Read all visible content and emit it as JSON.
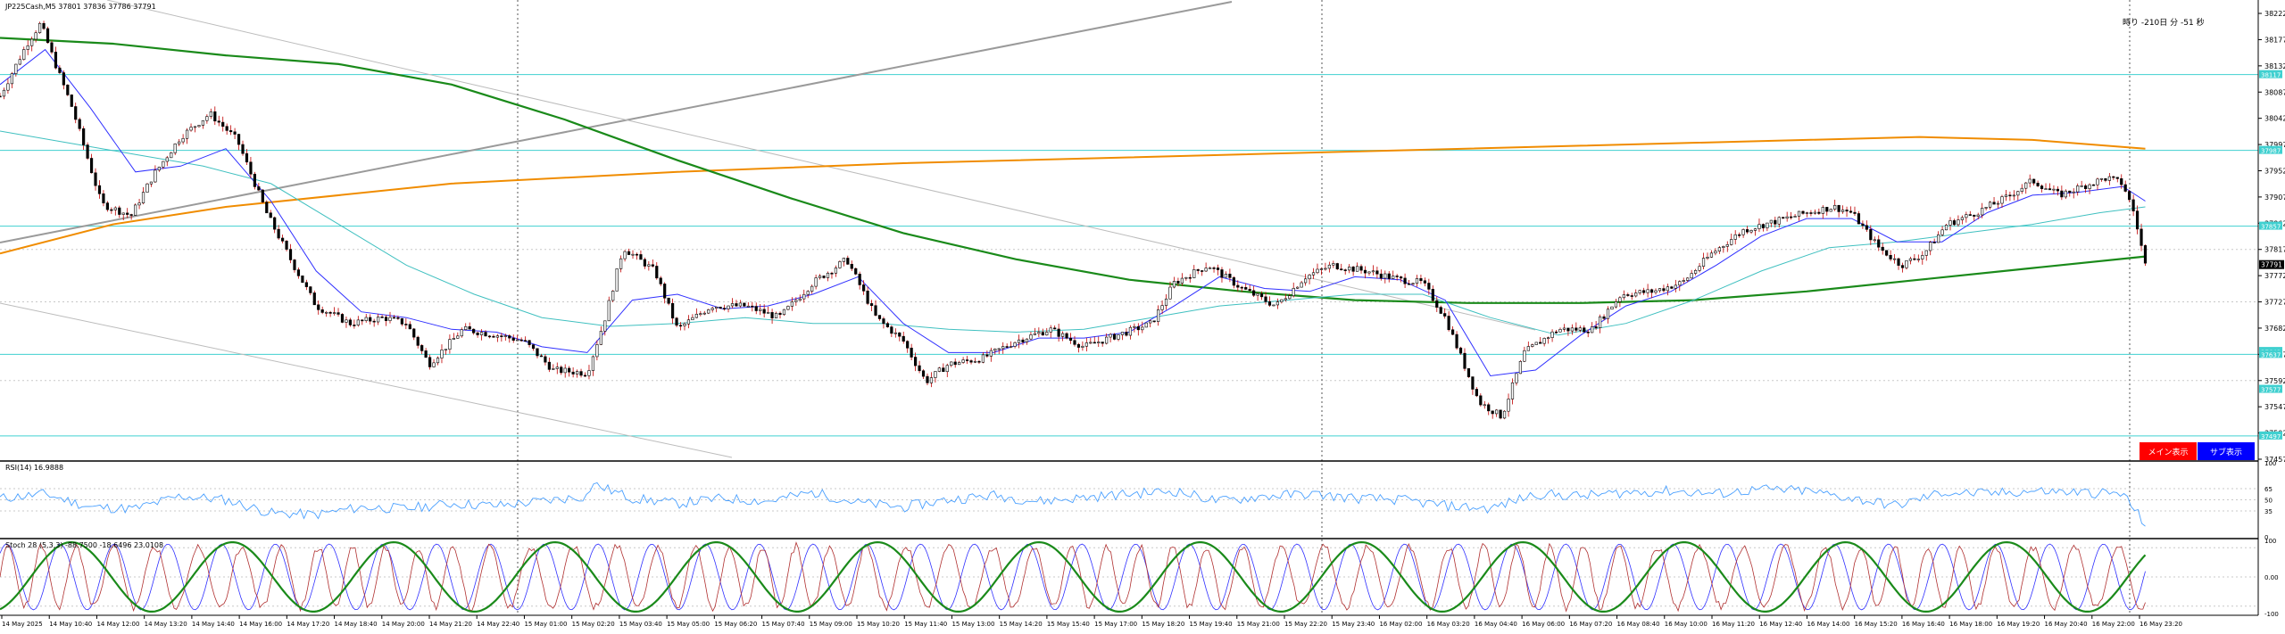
{
  "symbol_label": "JP225Cash,M5  37801 37836 37786 37791",
  "countdown": "時り -210日 分 -51 秒",
  "buttons": {
    "main": "メイン表示",
    "sub": "サブ表示",
    "main_color": "#ff0000",
    "sub_color": "#0000ff"
  },
  "colors": {
    "candle_bull": "#000000",
    "candle_bear": "#000000",
    "wick_color": "#c00000",
    "ma_fast": "#3030ff",
    "ma_mid": "#40c0c0",
    "ma_slow": "#1a8a1a",
    "ma_long": "#f08c00",
    "hline": "#40d0d0",
    "trend": "#909090",
    "rsi": "#4aa0ff",
    "stoch_k": "#b03030",
    "stoch_d": "#3030ff",
    "stoch_slow": "#1a8a1a",
    "grid": "#c8c8c8"
  },
  "rsi_label": "RSI(14) 16.9888",
  "stoch_label": "Stoch 28 (5,3,3) -88.7500 -18.6496 23.0108",
  "chart_data": {
    "type": "candlestick",
    "ylim": [
      37457,
      38245
    ],
    "price_ticks": [
      "38222",
      "38177",
      "38132",
      "38087",
      "38042",
      "37997",
      "37952",
      "37907",
      "37862",
      "37817",
      "37772",
      "37727",
      "37682",
      "37637",
      "37592",
      "37547",
      "37502",
      "37457"
    ],
    "hlines": [
      38117,
      37987,
      37857,
      37637,
      37497
    ],
    "hline_labels": [
      "38117",
      "37987",
      "37857",
      "37642",
      "37637",
      "37577",
      "37497"
    ],
    "current_price": "37791",
    "x_labels": [
      "14 May 2025",
      "14 May 10:40",
      "14 May 12:00",
      "14 May 13:20",
      "14 May 14:40",
      "14 May 16:00",
      "14 May 17:20",
      "14 May 18:40",
      "14 May 20:00",
      "14 May 21:20",
      "14 May 22:40",
      "15 May 01:00",
      "15 May 02:20",
      "15 May 03:40",
      "15 May 05:00",
      "15 May 06:20",
      "15 May 07:40",
      "15 May 09:00",
      "15 May 10:20",
      "15 May 11:40",
      "15 May 13:00",
      "15 May 14:20",
      "15 May 15:40",
      "15 May 17:00",
      "15 May 18:20",
      "15 May 19:40",
      "15 May 21:00",
      "15 May 22:20",
      "15 May 23:40",
      "16 May 02:00",
      "16 May 03:20",
      "16 May 04:40",
      "16 May 06:00",
      "16 May 07:20",
      "16 May 08:40",
      "16 May 10:00",
      "16 May 11:20",
      "16 May 12:40",
      "16 May 14:00",
      "16 May 15:20",
      "16 May 16:40",
      "16 May 18:00",
      "16 May 19:20",
      "16 May 20:40",
      "16 May 22:00",
      "16 May 23:20"
    ],
    "price_path": [
      [
        0,
        38080
      ],
      [
        0.012,
        38170
      ],
      [
        0.018,
        38205
      ],
      [
        0.025,
        38130
      ],
      [
        0.032,
        38060
      ],
      [
        0.045,
        37895
      ],
      [
        0.058,
        37875
      ],
      [
        0.068,
        37945
      ],
      [
        0.08,
        38010
      ],
      [
        0.093,
        38050
      ],
      [
        0.105,
        38005
      ],
      [
        0.118,
        37880
      ],
      [
        0.13,
        37790
      ],
      [
        0.14,
        37720
      ],
      [
        0.155,
        37690
      ],
      [
        0.17,
        37700
      ],
      [
        0.18,
        37690
      ],
      [
        0.19,
        37620
      ],
      [
        0.205,
        37680
      ],
      [
        0.22,
        37670
      ],
      [
        0.232,
        37660
      ],
      [
        0.245,
        37610
      ],
      [
        0.26,
        37605
      ],
      [
        0.268,
        37700
      ],
      [
        0.276,
        37820
      ],
      [
        0.29,
        37780
      ],
      [
        0.3,
        37680
      ],
      [
        0.315,
        37720
      ],
      [
        0.33,
        37720
      ],
      [
        0.345,
        37700
      ],
      [
        0.36,
        37760
      ],
      [
        0.375,
        37800
      ],
      [
        0.388,
        37700
      ],
      [
        0.4,
        37660
      ],
      [
        0.41,
        37590
      ],
      [
        0.42,
        37620
      ],
      [
        0.435,
        37630
      ],
      [
        0.45,
        37660
      ],
      [
        0.465,
        37680
      ],
      [
        0.48,
        37650
      ],
      [
        0.495,
        37670
      ],
      [
        0.51,
        37690
      ],
      [
        0.52,
        37760
      ],
      [
        0.535,
        37790
      ],
      [
        0.55,
        37750
      ],
      [
        0.565,
        37720
      ],
      [
        0.578,
        37770
      ],
      [
        0.59,
        37790
      ],
      [
        0.605,
        37780
      ],
      [
        0.62,
        37765
      ],
      [
        0.63,
        37760
      ],
      [
        0.64,
        37700
      ],
      [
        0.655,
        37555
      ],
      [
        0.665,
        37530
      ],
      [
        0.675,
        37640
      ],
      [
        0.69,
        37680
      ],
      [
        0.705,
        37680
      ],
      [
        0.718,
        37740
      ],
      [
        0.732,
        37745
      ],
      [
        0.745,
        37760
      ],
      [
        0.758,
        37810
      ],
      [
        0.772,
        37850
      ],
      [
        0.786,
        37865
      ],
      [
        0.8,
        37880
      ],
      [
        0.812,
        37890
      ],
      [
        0.82,
        37880
      ],
      [
        0.832,
        37820
      ],
      [
        0.842,
        37790
      ],
      [
        0.852,
        37810
      ],
      [
        0.862,
        37860
      ],
      [
        0.875,
        37880
      ],
      [
        0.888,
        37905
      ],
      [
        0.9,
        37935
      ],
      [
        0.912,
        37910
      ],
      [
        0.922,
        37925
      ],
      [
        0.933,
        37940
      ],
      [
        0.94,
        37930
      ],
      [
        0.945,
        37880
      ],
      [
        0.95,
        37791
      ]
    ],
    "ma_fast": [
      [
        0,
        38100
      ],
      [
        0.02,
        38160
      ],
      [
        0.04,
        38060
      ],
      [
        0.06,
        37950
      ],
      [
        0.08,
        37960
      ],
      [
        0.1,
        37990
      ],
      [
        0.12,
        37900
      ],
      [
        0.14,
        37780
      ],
      [
        0.16,
        37710
      ],
      [
        0.18,
        37700
      ],
      [
        0.2,
        37680
      ],
      [
        0.22,
        37675
      ],
      [
        0.24,
        37650
      ],
      [
        0.26,
        37640
      ],
      [
        0.28,
        37730
      ],
      [
        0.3,
        37740
      ],
      [
        0.32,
        37715
      ],
      [
        0.34,
        37720
      ],
      [
        0.36,
        37740
      ],
      [
        0.38,
        37770
      ],
      [
        0.4,
        37690
      ],
      [
        0.42,
        37640
      ],
      [
        0.44,
        37640
      ],
      [
        0.46,
        37665
      ],
      [
        0.48,
        37665
      ],
      [
        0.5,
        37675
      ],
      [
        0.52,
        37720
      ],
      [
        0.54,
        37770
      ],
      [
        0.56,
        37750
      ],
      [
        0.58,
        37745
      ],
      [
        0.6,
        37770
      ],
      [
        0.62,
        37765
      ],
      [
        0.64,
        37730
      ],
      [
        0.66,
        37600
      ],
      [
        0.68,
        37610
      ],
      [
        0.7,
        37670
      ],
      [
        0.72,
        37720
      ],
      [
        0.74,
        37745
      ],
      [
        0.76,
        37790
      ],
      [
        0.78,
        37840
      ],
      [
        0.8,
        37870
      ],
      [
        0.82,
        37870
      ],
      [
        0.84,
        37830
      ],
      [
        0.86,
        37830
      ],
      [
        0.88,
        37880
      ],
      [
        0.9,
        37910
      ],
      [
        0.92,
        37915
      ],
      [
        0.94,
        37925
      ],
      [
        0.95,
        37900
      ]
    ],
    "ma_mid": [
      [
        0,
        38020
      ],
      [
        0.03,
        38000
      ],
      [
        0.06,
        37980
      ],
      [
        0.09,
        37960
      ],
      [
        0.12,
        37930
      ],
      [
        0.15,
        37860
      ],
      [
        0.18,
        37790
      ],
      [
        0.21,
        37740
      ],
      [
        0.24,
        37700
      ],
      [
        0.27,
        37685
      ],
      [
        0.3,
        37690
      ],
      [
        0.33,
        37700
      ],
      [
        0.36,
        37690
      ],
      [
        0.39,
        37690
      ],
      [
        0.42,
        37680
      ],
      [
        0.45,
        37675
      ],
      [
        0.48,
        37680
      ],
      [
        0.51,
        37700
      ],
      [
        0.54,
        37720
      ],
      [
        0.57,
        37730
      ],
      [
        0.6,
        37740
      ],
      [
        0.63,
        37740
      ],
      [
        0.66,
        37700
      ],
      [
        0.69,
        37670
      ],
      [
        0.72,
        37690
      ],
      [
        0.75,
        37730
      ],
      [
        0.78,
        37780
      ],
      [
        0.81,
        37820
      ],
      [
        0.84,
        37830
      ],
      [
        0.87,
        37845
      ],
      [
        0.9,
        37860
      ],
      [
        0.93,
        37880
      ],
      [
        0.95,
        37890
      ]
    ],
    "ma_slow": [
      [
        0,
        38180
      ],
      [
        0.05,
        38170
      ],
      [
        0.1,
        38150
      ],
      [
        0.15,
        38135
      ],
      [
        0.2,
        38100
      ],
      [
        0.25,
        38040
      ],
      [
        0.3,
        37970
      ],
      [
        0.35,
        37905
      ],
      [
        0.4,
        37845
      ],
      [
        0.45,
        37800
      ],
      [
        0.5,
        37765
      ],
      [
        0.55,
        37745
      ],
      [
        0.6,
        37730
      ],
      [
        0.65,
        37725
      ],
      [
        0.7,
        37725
      ],
      [
        0.75,
        37730
      ],
      [
        0.8,
        37745
      ],
      [
        0.85,
        37765
      ],
      [
        0.9,
        37785
      ],
      [
        0.95,
        37805
      ]
    ],
    "ma_long": [
      [
        0,
        37810
      ],
      [
        0.05,
        37860
      ],
      [
        0.1,
        37890
      ],
      [
        0.2,
        37930
      ],
      [
        0.3,
        37950
      ],
      [
        0.4,
        37965
      ],
      [
        0.5,
        37975
      ],
      [
        0.6,
        37985
      ],
      [
        0.7,
        37995
      ],
      [
        0.8,
        38005
      ],
      [
        0.85,
        38010
      ],
      [
        0.9,
        38005
      ],
      [
        0.95,
        37990
      ]
    ],
    "rsi_ylim": [
      0,
      100
    ],
    "rsi_ticks": [
      "100",
      "65",
      "50",
      "35",
      "0"
    ],
    "rsi_path": [
      [
        0,
        52
      ],
      [
        0.02,
        58
      ],
      [
        0.04,
        40
      ],
      [
        0.06,
        38
      ],
      [
        0.08,
        55
      ],
      [
        0.1,
        50
      ],
      [
        0.12,
        32
      ],
      [
        0.14,
        30
      ],
      [
        0.16,
        40
      ],
      [
        0.18,
        38
      ],
      [
        0.2,
        45
      ],
      [
        0.22,
        42
      ],
      [
        0.24,
        48
      ],
      [
        0.26,
        55
      ],
      [
        0.262,
        72
      ],
      [
        0.28,
        52
      ],
      [
        0.3,
        45
      ],
      [
        0.32,
        52
      ],
      [
        0.34,
        48
      ],
      [
        0.36,
        60
      ],
      [
        0.38,
        46
      ],
      [
        0.4,
        40
      ],
      [
        0.42,
        50
      ],
      [
        0.44,
        56
      ],
      [
        0.46,
        48
      ],
      [
        0.48,
        53
      ],
      [
        0.5,
        58
      ],
      [
        0.52,
        62
      ],
      [
        0.54,
        48
      ],
      [
        0.56,
        55
      ],
      [
        0.58,
        58
      ],
      [
        0.6,
        52
      ],
      [
        0.62,
        50
      ],
      [
        0.64,
        42
      ],
      [
        0.66,
        38
      ],
      [
        0.68,
        58
      ],
      [
        0.7,
        55
      ],
      [
        0.72,
        60
      ],
      [
        0.74,
        62
      ],
      [
        0.76,
        58
      ],
      [
        0.78,
        64
      ],
      [
        0.8,
        62
      ],
      [
        0.82,
        52
      ],
      [
        0.84,
        42
      ],
      [
        0.86,
        60
      ],
      [
        0.88,
        58
      ],
      [
        0.9,
        62
      ],
      [
        0.92,
        60
      ],
      [
        0.94,
        58
      ],
      [
        0.95,
        17
      ]
    ],
    "stoch_ylim": [
      -100,
      100
    ],
    "stoch_ticks": [
      "100",
      "0.00",
      "-100"
    ]
  }
}
